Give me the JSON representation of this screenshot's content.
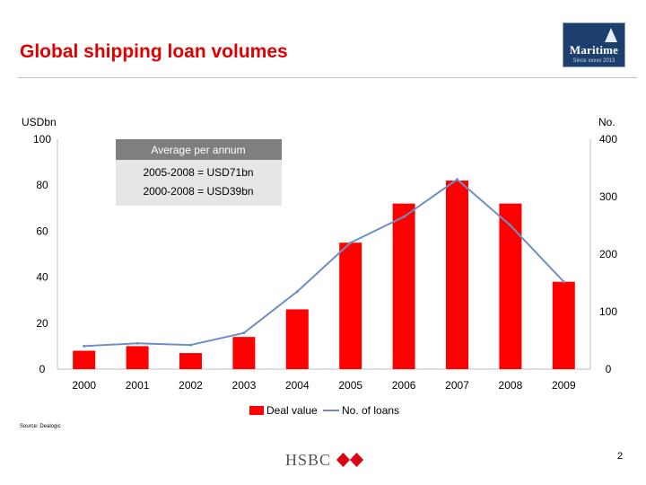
{
  "title": "Global shipping loan volumes",
  "logo": {
    "word": "Maritime",
    "sub": "Since xxxxx 2013"
  },
  "annotation": {
    "header": "Average per annum",
    "line1": "2005-2008 = USD71bn",
    "line2": "2000-2008 = USD39bn"
  },
  "source": "Source: Dealogic",
  "footer_brand": "HSBC",
  "page_number": "2",
  "colors": {
    "bar": "#ff0000",
    "line": "#6f8fc4",
    "title": "#e00000"
  },
  "chart_data": {
    "type": "bar",
    "categories": [
      "2000",
      "2001",
      "2002",
      "2003",
      "2004",
      "2005",
      "2006",
      "2007",
      "2008",
      "2009"
    ],
    "series": [
      {
        "name": "Deal value",
        "type": "bar",
        "axis": "left",
        "values": [
          8,
          10,
          7,
          14,
          26,
          55,
          72,
          82,
          72,
          38
        ]
      },
      {
        "name": "No. of loans",
        "type": "line",
        "axis": "right",
        "values": [
          40,
          45,
          42,
          63,
          135,
          220,
          265,
          330,
          250,
          152
        ]
      }
    ],
    "ylabel_left": "USDbn",
    "ylabel_right": "No.",
    "ylim_left": [
      0,
      100
    ],
    "ylim_right": [
      0,
      400
    ],
    "yticks_left": [
      0,
      20,
      40,
      60,
      80,
      100
    ],
    "yticks_right": [
      0,
      100,
      200,
      300,
      400
    ],
    "grid": false,
    "legend_position": "bottom"
  }
}
